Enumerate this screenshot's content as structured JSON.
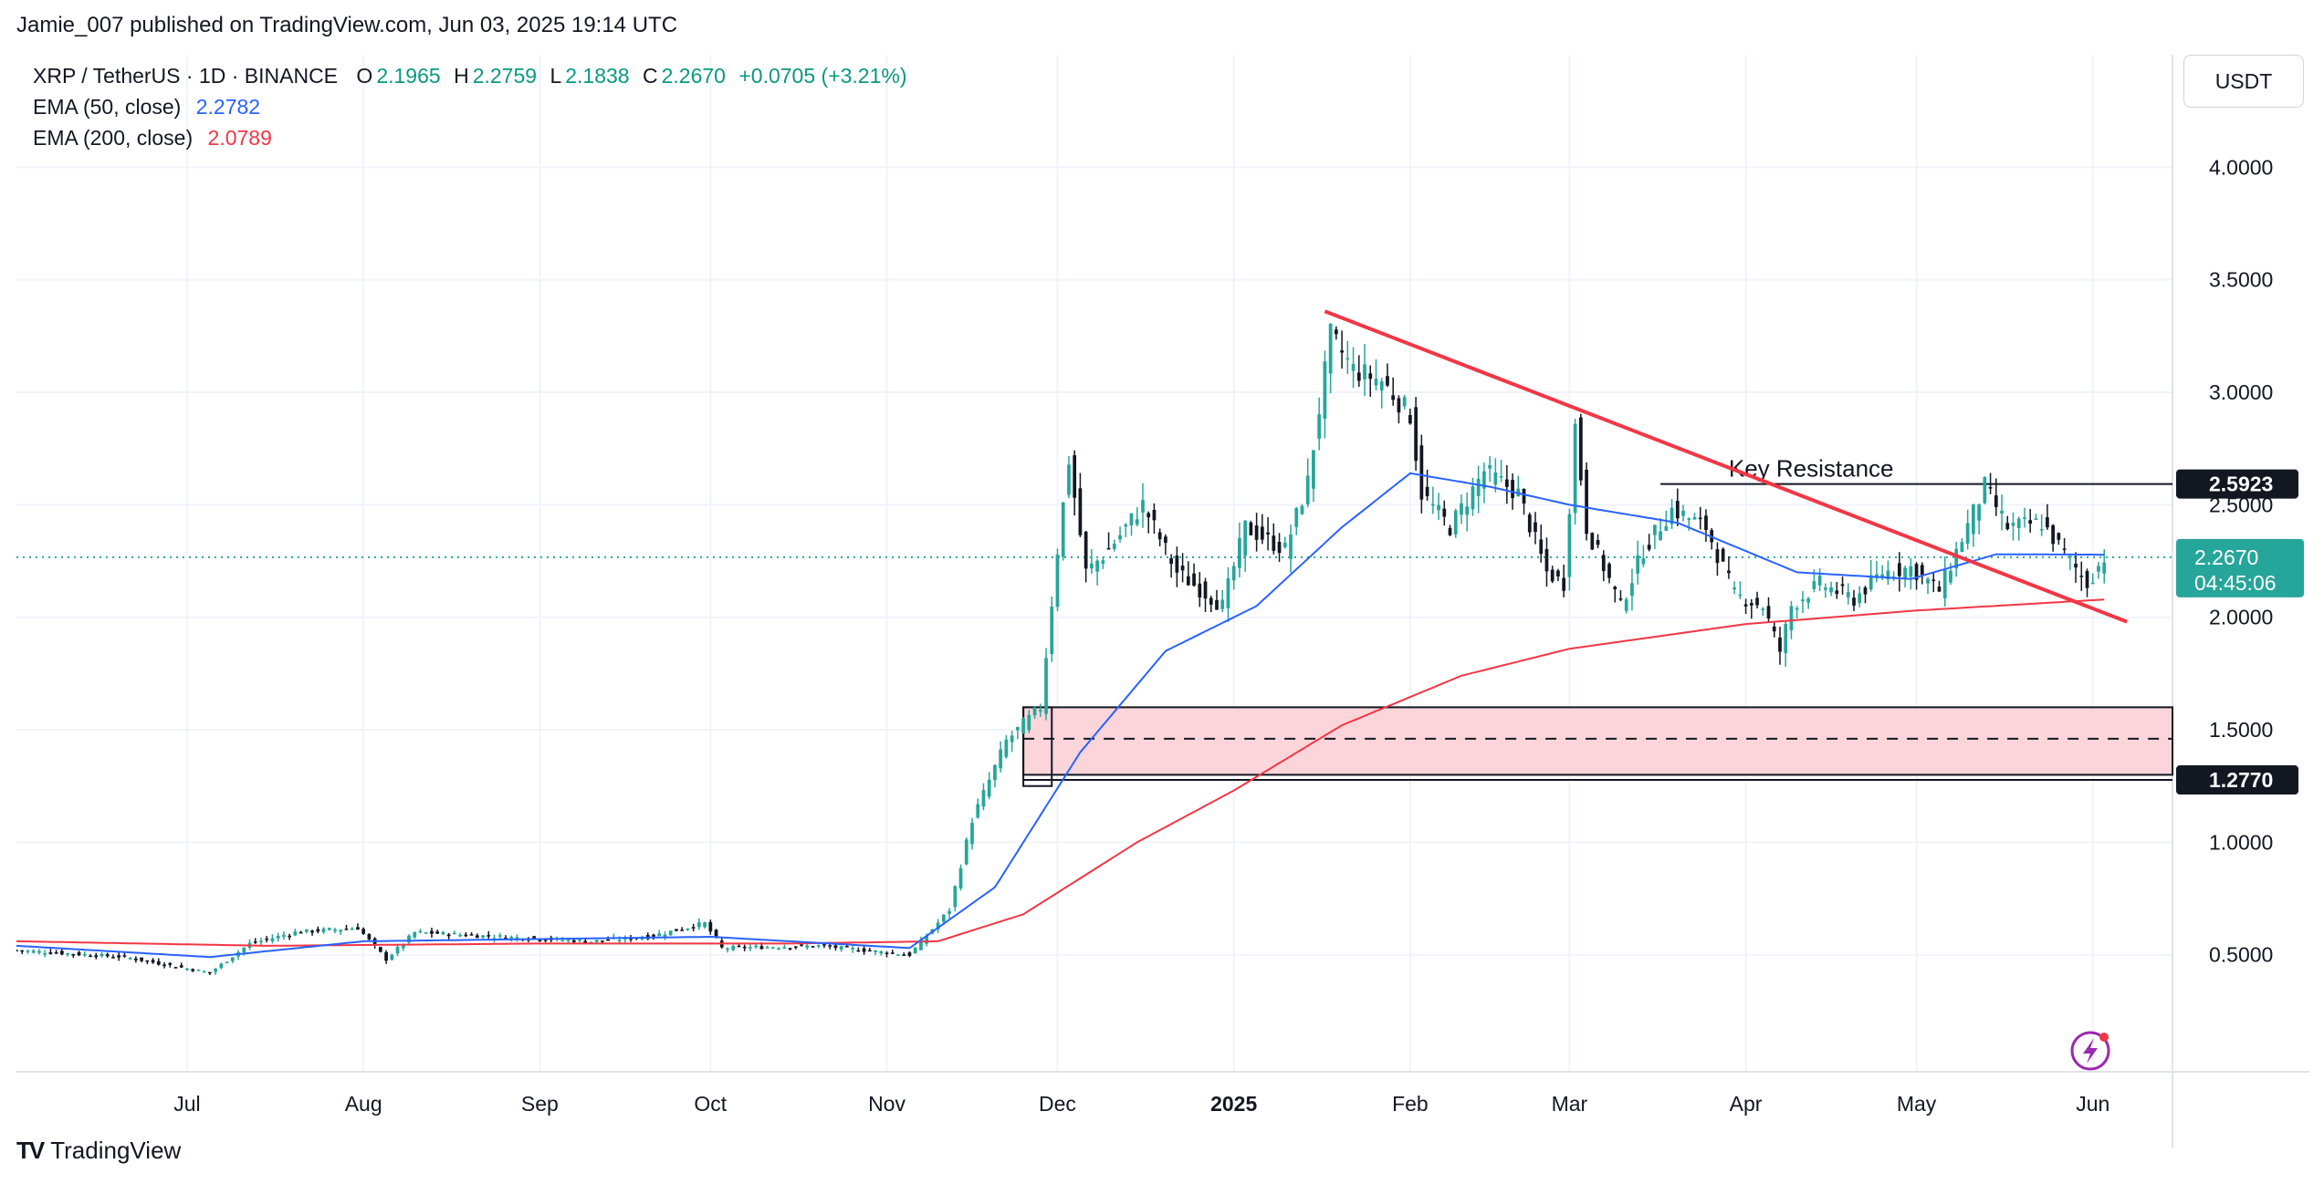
{
  "header": {
    "text": "Jamie_007 published on TradingView.com, Jun 03, 2025 19:14 UTC"
  },
  "legend": {
    "symbol": "XRP / TetherUS · 1D · BINANCE",
    "o_label": "O",
    "o": "2.1965",
    "h_label": "H",
    "h": "2.2759",
    "l_label": "L",
    "l": "2.1838",
    "c_label": "C",
    "c": "2.2670",
    "change": "+0.0705 (+3.21%)",
    "ema50_label": "EMA (50, close)",
    "ema50_value": "2.2782",
    "ema200_label": "EMA (200, close)",
    "ema200_value": "2.0789"
  },
  "currency": "USDT",
  "footer": {
    "logo_mark": "TV",
    "brand": "TradingView"
  },
  "colors": {
    "up": "#26a69a",
    "down": "#131722",
    "ema50": "#2962ff",
    "ema200": "#f23645",
    "trendline": "#f23645",
    "zone_fill": "#fbd5da",
    "last_price": "#26a69a"
  },
  "chart_data": {
    "type": "candlestick",
    "symbol": "XRP / TetherUS",
    "timeframe": "1D",
    "y_ticks": [
      "0.5000",
      "1.0000",
      "1.5000",
      "2.0000",
      "2.5000",
      "3.0000",
      "3.5000",
      "4.0000"
    ],
    "y_tick_values": [
      0.5,
      1.0,
      1.5,
      2.0,
      2.5,
      3.0,
      3.5,
      4.0
    ],
    "ylim": [
      -0.02,
      4.5
    ],
    "x_range": [
      "2024-06-01",
      "2025-06-15"
    ],
    "x_ticks": [
      {
        "label": "Jul",
        "date": "2024-07-01",
        "bold": false
      },
      {
        "label": "Aug",
        "date": "2024-08-01",
        "bold": false
      },
      {
        "label": "Sep",
        "date": "2024-09-01",
        "bold": false
      },
      {
        "label": "Oct",
        "date": "2024-10-01",
        "bold": false
      },
      {
        "label": "Nov",
        "date": "2024-11-01",
        "bold": false
      },
      {
        "label": "Dec",
        "date": "2024-12-01",
        "bold": false
      },
      {
        "label": "2025",
        "date": "2025-01-01",
        "bold": true
      },
      {
        "label": "Feb",
        "date": "2025-02-01",
        "bold": false
      },
      {
        "label": "Mar",
        "date": "2025-03-01",
        "bold": false
      },
      {
        "label": "Apr",
        "date": "2025-04-01",
        "bold": false
      },
      {
        "label": "May",
        "date": "2025-05-01",
        "bold": false
      },
      {
        "label": "Jun",
        "date": "2025-06-01",
        "bold": false
      }
    ],
    "price_keypoints": [
      [
        "2024-06-01",
        0.52
      ],
      [
        "2024-06-20",
        0.49
      ],
      [
        "2024-07-05",
        0.42
      ],
      [
        "2024-07-12",
        0.55
      ],
      [
        "2024-07-20",
        0.6
      ],
      [
        "2024-07-31",
        0.62
      ],
      [
        "2024-08-05",
        0.48
      ],
      [
        "2024-08-10",
        0.6
      ],
      [
        "2024-08-25",
        0.58
      ],
      [
        "2024-09-10",
        0.56
      ],
      [
        "2024-09-20",
        0.58
      ],
      [
        "2024-09-30",
        0.64
      ],
      [
        "2024-10-03",
        0.53
      ],
      [
        "2024-10-20",
        0.54
      ],
      [
        "2024-11-05",
        0.5
      ],
      [
        "2024-11-12",
        0.7
      ],
      [
        "2024-11-16",
        1.1
      ],
      [
        "2024-11-22",
        1.45
      ],
      [
        "2024-11-28",
        1.6
      ],
      [
        "2024-12-01",
        2.3
      ],
      [
        "2024-12-03",
        2.7
      ],
      [
        "2024-12-06",
        2.2
      ],
      [
        "2024-12-10",
        2.3
      ],
      [
        "2024-12-16",
        2.5
      ],
      [
        "2024-12-22",
        2.2
      ],
      [
        "2024-12-30",
        2.05
      ],
      [
        "2025-01-03",
        2.4
      ],
      [
        "2025-01-10",
        2.3
      ],
      [
        "2025-01-14",
        2.6
      ],
      [
        "2025-01-18",
        3.25
      ],
      [
        "2025-01-22",
        3.1
      ],
      [
        "2025-01-27",
        3.05
      ],
      [
        "2025-02-01",
        2.9
      ],
      [
        "2025-02-03",
        2.55
      ],
      [
        "2025-02-08",
        2.4
      ],
      [
        "2025-02-14",
        2.65
      ],
      [
        "2025-02-20",
        2.55
      ],
      [
        "2025-02-25",
        2.2
      ],
      [
        "2025-02-28",
        2.15
      ],
      [
        "2025-03-02",
        2.85
      ],
      [
        "2025-03-04",
        2.4
      ],
      [
        "2025-03-10",
        2.05
      ],
      [
        "2025-03-14",
        2.3
      ],
      [
        "2025-03-19",
        2.48
      ],
      [
        "2025-03-25",
        2.4
      ],
      [
        "2025-03-30",
        2.1
      ],
      [
        "2025-04-04",
        2.05
      ],
      [
        "2025-04-07",
        1.85
      ],
      [
        "2025-04-09",
        2.05
      ],
      [
        "2025-04-14",
        2.15
      ],
      [
        "2025-04-20",
        2.08
      ],
      [
        "2025-04-25",
        2.2
      ],
      [
        "2025-04-30",
        2.22
      ],
      [
        "2025-05-05",
        2.12
      ],
      [
        "2025-05-09",
        2.35
      ],
      [
        "2025-05-13",
        2.58
      ],
      [
        "2025-05-17",
        2.4
      ],
      [
        "2025-05-23",
        2.42
      ],
      [
        "2025-05-28",
        2.25
      ],
      [
        "2025-05-31",
        2.15
      ],
      [
        "2025-06-03",
        2.267
      ]
    ],
    "ema50_keypoints": [
      [
        "2024-06-01",
        0.54
      ],
      [
        "2024-07-05",
        0.49
      ],
      [
        "2024-08-01",
        0.56
      ],
      [
        "2024-09-01",
        0.57
      ],
      [
        "2024-10-01",
        0.58
      ],
      [
        "2024-11-05",
        0.53
      ],
      [
        "2024-11-20",
        0.8
      ],
      [
        "2024-12-05",
        1.4
      ],
      [
        "2024-12-20",
        1.85
      ],
      [
        "2025-01-05",
        2.05
      ],
      [
        "2025-01-20",
        2.4
      ],
      [
        "2025-02-01",
        2.64
      ],
      [
        "2025-02-15",
        2.58
      ],
      [
        "2025-03-01",
        2.5
      ],
      [
        "2025-03-20",
        2.42
      ],
      [
        "2025-04-10",
        2.2
      ],
      [
        "2025-04-30",
        2.17
      ],
      [
        "2025-05-15",
        2.28
      ],
      [
        "2025-06-03",
        2.2782
      ]
    ],
    "ema200_keypoints": [
      [
        "2024-06-01",
        0.56
      ],
      [
        "2024-07-15",
        0.54
      ],
      [
        "2024-09-01",
        0.55
      ],
      [
        "2024-10-15",
        0.55
      ],
      [
        "2024-11-10",
        0.56
      ],
      [
        "2024-11-25",
        0.68
      ],
      [
        "2024-12-15",
        1.0
      ],
      [
        "2025-01-01",
        1.23
      ],
      [
        "2025-01-20",
        1.52
      ],
      [
        "2025-02-10",
        1.74
      ],
      [
        "2025-03-01",
        1.86
      ],
      [
        "2025-04-01",
        1.97
      ],
      [
        "2025-05-01",
        2.03
      ],
      [
        "2025-06-03",
        2.0789
      ]
    ],
    "annotations": {
      "key_resistance": {
        "text": "Key Resistance",
        "price": 2.5923,
        "price_label": "2.5923",
        "from": "2025-03-17",
        "to": "2025-06-30"
      },
      "support_zone": {
        "top": 1.6,
        "bottom": 1.3,
        "mid": 1.46,
        "from": "2024-11-25",
        "to": "2025-06-30"
      },
      "support_line": {
        "price": 1.277,
        "price_label": "1.2770",
        "from": "2024-11-25",
        "to": "2025-06-30"
      },
      "trendline": {
        "start": [
          "2025-01-17",
          3.36
        ],
        "end": [
          "2025-06-07",
          1.98
        ]
      },
      "last_price": {
        "price": 2.267,
        "label": "2.2670",
        "countdown": "04:45:06"
      }
    }
  }
}
